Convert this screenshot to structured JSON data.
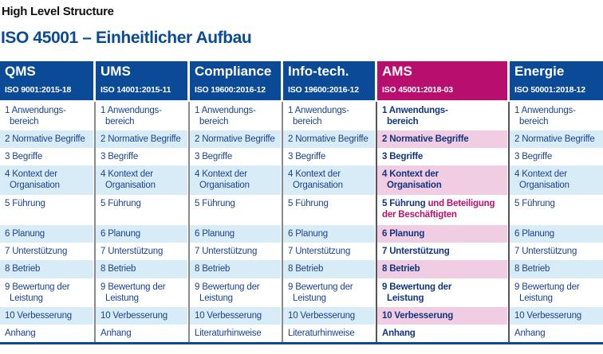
{
  "title": "High Level Structure",
  "subtitle": "ISO 45001 – Einheitlicher Aufbau",
  "colors": {
    "header_blue": "#0a4a96",
    "ams_magenta": "#b80f6f",
    "row_blue": "#d8ecf8",
    "row_pink": "#f0cde2"
  },
  "columns": [
    {
      "name": "QMS",
      "iso": "ISO 9001:2015-18",
      "rows": [
        {
          "n": "1",
          "t": "Anwendungs-",
          "t2": "bereich"
        },
        {
          "n": "2",
          "t": "Normative Begriffe"
        },
        {
          "n": "3",
          "t": "Begriffe"
        },
        {
          "n": "4",
          "t": "Kontext der",
          "t2": "Organisation"
        },
        {
          "n": "5",
          "t": "Führung"
        },
        {
          "n": "6",
          "t": "Planung"
        },
        {
          "n": "7",
          "t": "Unterstützung"
        },
        {
          "n": "8",
          "t": "Betrieb"
        },
        {
          "n": "9",
          "t": "Bewertung der",
          "t2": "Leistung"
        },
        {
          "n": "10",
          "t": "Verbesserung"
        },
        {
          "t": "Anhang"
        }
      ]
    },
    {
      "name": "UMS",
      "iso": "ISO 14001:2015-11",
      "rows": [
        {
          "n": "1",
          "t": "Anwendungs-",
          "t2": "bereich"
        },
        {
          "n": "2",
          "t": "Normative Begriffe"
        },
        {
          "n": "3",
          "t": "Begriffe"
        },
        {
          "n": "4",
          "t": "Kontext der",
          "t2": "Organisation"
        },
        {
          "n": "5",
          "t": "Führung"
        },
        {
          "n": "6",
          "t": "Planung"
        },
        {
          "n": "7",
          "t": "Unterstützung"
        },
        {
          "n": "8",
          "t": "Betrieb"
        },
        {
          "n": "9",
          "t": "Bewertung der",
          "t2": "Leistung"
        },
        {
          "n": "10",
          "t": "Verbesserung"
        },
        {
          "t": "Anhang"
        }
      ]
    },
    {
      "name": "Compliance",
      "iso": "ISO 19600:2016-12",
      "rows": [
        {
          "n": "1",
          "t": "Anwendungs-",
          "t2": "bereich"
        },
        {
          "n": "2",
          "t": "Normative Begriffe"
        },
        {
          "n": "3",
          "t": "Begriffe"
        },
        {
          "n": "4",
          "t": "Kontext der",
          "t2": "Organisation"
        },
        {
          "n": "5",
          "t": "Führung"
        },
        {
          "n": "6",
          "t": "Planung"
        },
        {
          "n": "7",
          "t": "Unterstützung"
        },
        {
          "n": "8",
          "t": "Betrieb"
        },
        {
          "n": "9",
          "t": "Bewertung der",
          "t2": "Leistung"
        },
        {
          "n": "10",
          "t": "Verbesserung"
        },
        {
          "t": "Literaturhinweise"
        }
      ]
    },
    {
      "name": "Info-tech.",
      "iso": "ISO 19600:2016-12",
      "rows": [
        {
          "n": "1",
          "t": "Anwendungs-",
          "t2": "bereich"
        },
        {
          "n": "2",
          "t": "Normative Begriffe"
        },
        {
          "n": "3",
          "t": "Begriffe"
        },
        {
          "n": "4",
          "t": "Kontext der",
          "t2": "Organisation"
        },
        {
          "n": "5",
          "t": "Führung"
        },
        {
          "n": "6",
          "t": "Planung"
        },
        {
          "n": "7",
          "t": "Unterstützung"
        },
        {
          "n": "8",
          "t": "Betrieb"
        },
        {
          "n": "9",
          "t": "Bewertung der",
          "t2": "Leistung"
        },
        {
          "n": "10",
          "t": "Verbesserung"
        },
        {
          "t": "Literaturhinweise"
        }
      ]
    },
    {
      "name": "AMS",
      "iso": "ISO 45001:2018-03",
      "ams": true,
      "rows": [
        {
          "n": "1",
          "t": "Anwendungs-",
          "t2": "bereich"
        },
        {
          "n": "2",
          "t": "Normative Begriffe"
        },
        {
          "n": "3",
          "t": "Begriffe"
        },
        {
          "n": "4",
          "t": "Kontext der",
          "t2": "Organisation"
        },
        {
          "n": "5",
          "t": "Führung",
          "extra": "und Beteiligung der Beschäftigten"
        },
        {
          "n": "6",
          "t": "Planung"
        },
        {
          "n": "7",
          "t": "Unterstützung"
        },
        {
          "n": "8",
          "t": "Betrieb"
        },
        {
          "n": "9",
          "t": "Bewertung der",
          "t2": "Leistung"
        },
        {
          "n": "10",
          "t": "Verbesserung"
        },
        {
          "t": "Anhang"
        }
      ]
    },
    {
      "name": "Energie",
      "iso": "ISO 50001:2018-12",
      "rows": [
        {
          "n": "1",
          "t": "Anwendungs-",
          "t2": "bereich"
        },
        {
          "n": "2",
          "t": "Normative Begriffe"
        },
        {
          "n": "3",
          "t": "Begriffe"
        },
        {
          "n": "4",
          "t": "Kontext der",
          "t2": "Organisation"
        },
        {
          "n": "5",
          "t": "Führung"
        },
        {
          "n": "6",
          "t": "Planung"
        },
        {
          "n": "7",
          "t": "Unterstützung"
        },
        {
          "n": "8",
          "t": "Betrieb"
        },
        {
          "n": "9",
          "t": "Bewertung der",
          "t2": "Leistung"
        },
        {
          "n": "10",
          "t": "Verbesserung"
        },
        {
          "t": "Anhang"
        }
      ]
    }
  ]
}
